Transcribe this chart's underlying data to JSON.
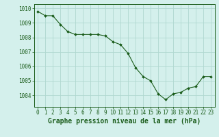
{
  "x": [
    0,
    1,
    2,
    3,
    4,
    5,
    6,
    7,
    8,
    9,
    10,
    11,
    12,
    13,
    14,
    15,
    16,
    17,
    18,
    19,
    20,
    21,
    22,
    23
  ],
  "y": [
    1009.8,
    1009.5,
    1009.5,
    1008.9,
    1008.4,
    1008.2,
    1008.2,
    1008.2,
    1008.2,
    1008.1,
    1007.7,
    1007.5,
    1006.9,
    1005.9,
    1005.3,
    1005.0,
    1004.1,
    1003.7,
    1004.1,
    1004.2,
    1004.5,
    1004.6,
    1005.3,
    1005.3
  ],
  "line_color": "#1a5c1a",
  "marker_color": "#1a5c1a",
  "bg_color": "#d4f0ec",
  "grid_color": "#b0d8d0",
  "title": "Graphe pression niveau de la mer (hPa)",
  "ylabel_ticks": [
    1004,
    1005,
    1006,
    1007,
    1008,
    1009,
    1010
  ],
  "ylim": [
    1003.2,
    1010.3
  ],
  "xlim": [
    -0.5,
    23.5
  ],
  "title_color": "#1a5c1a",
  "tick_fontsize": 5.5,
  "title_fontsize": 7.0
}
